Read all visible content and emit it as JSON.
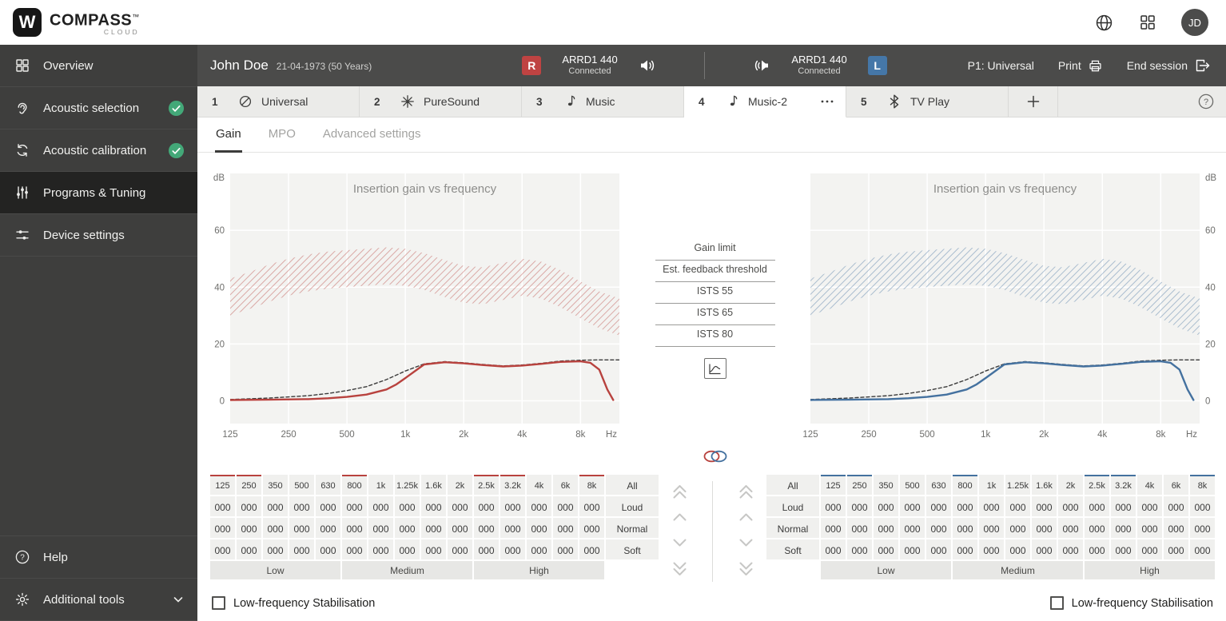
{
  "top_bar": {
    "logo_mark": "W",
    "logo_text": "COMPASS",
    "logo_tm": "™",
    "logo_sub": "CLOUD",
    "avatar_initials": "JD"
  },
  "sidebar": {
    "items": [
      {
        "label": "Overview",
        "icon": "overview-grid-icon",
        "active": false,
        "checked": false
      },
      {
        "label": "Acoustic selection",
        "icon": "ear-icon",
        "active": false,
        "checked": true
      },
      {
        "label": "Acoustic calibration",
        "icon": "calibration-icon",
        "active": false,
        "checked": true
      },
      {
        "label": "Programs & Tuning",
        "icon": "tuning-sliders-icon",
        "active": true,
        "checked": false
      },
      {
        "label": "Device settings",
        "icon": "device-settings-icon",
        "active": false,
        "checked": false
      }
    ],
    "bottom_items": [
      {
        "label": "Help",
        "icon": "help-icon",
        "chevron": false
      },
      {
        "label": "Additional tools",
        "icon": "additional-tools-icon",
        "chevron": true
      }
    ]
  },
  "patient_header": {
    "name": "John Doe",
    "dob": "21-04-1973 (50 Years)",
    "right_ear": {
      "badge": "R",
      "device": "ARRD1 440",
      "status": "Connected"
    },
    "left_ear": {
      "badge": "L",
      "device": "ARRD1 440",
      "status": "Connected"
    },
    "program_indicator": "P1: Universal",
    "print_label": "Print",
    "end_session_label": "End session"
  },
  "program_tabs": {
    "tabs": [
      {
        "number": "1",
        "label": "Universal",
        "icon": "universal-icon",
        "active": false,
        "menu": false
      },
      {
        "number": "2",
        "label": "PureSound",
        "icon": "puresound-icon",
        "active": false,
        "menu": false
      },
      {
        "number": "3",
        "label": "Music",
        "icon": "music-note-icon",
        "active": false,
        "menu": false
      },
      {
        "number": "4",
        "label": "Music-2",
        "icon": "music-note-icon",
        "active": true,
        "menu": true
      },
      {
        "number": "5",
        "label": "TV Play",
        "icon": "bluetooth-icon",
        "active": false,
        "menu": false
      }
    ]
  },
  "sub_tabs": {
    "items": [
      "Gain",
      "MPO",
      "Advanced settings"
    ],
    "active_index": 0
  },
  "middle_panel": {
    "buttons": [
      "Gain limit",
      "Est. feedback threshold",
      "ISTS 55",
      "ISTS 65",
      "ISTS 80"
    ]
  },
  "gain_table": {
    "frequencies": [
      "125",
      "250",
      "350",
      "500",
      "630",
      "800",
      "1k",
      "1.25k",
      "1.6k",
      "2k",
      "2.5k",
      "3.2k",
      "4k",
      "6k",
      "8k"
    ],
    "all_label": "All",
    "row_labels": [
      "Loud",
      "Normal",
      "Soft"
    ],
    "cell_value": "000",
    "bands": [
      "Low",
      "Medium",
      "High"
    ],
    "accent_columns": [
      0,
      1,
      5,
      10,
      11,
      14
    ]
  },
  "footer": {
    "stabilisation_label": "Low-frequency Stabilisation"
  },
  "colors": {
    "red": "#b8423e",
    "blue": "#44719f",
    "green": "#43a878"
  },
  "chart_data": {
    "type": "line",
    "title": "Insertion gain vs frequency",
    "xlabel": "Hz",
    "ylabel": "dB",
    "x_scale": "log",
    "xlim": [
      125,
      12700
    ],
    "ylim": [
      -8,
      80
    ],
    "y_ticks": [
      0,
      20,
      40,
      60
    ],
    "x_ticks": [
      {
        "v": 125,
        "label": "125"
      },
      {
        "v": 250,
        "label": "250"
      },
      {
        "v": 500,
        "label": "500"
      },
      {
        "v": 1000,
        "label": "1k"
      },
      {
        "v": 2000,
        "label": "2k"
      },
      {
        "v": 4000,
        "label": "4k"
      },
      {
        "v": 8000,
        "label": "8k"
      }
    ],
    "panels": [
      {
        "ear": "right",
        "label_side": "left",
        "accent": "#b8423e"
      },
      {
        "ear": "left",
        "label_side": "right",
        "accent": "#44719f"
      }
    ],
    "band": {
      "name": "gain-limit-region",
      "x": [
        125,
        160,
        200,
        250,
        315,
        400,
        500,
        630,
        800,
        1000,
        1250,
        1600,
        2000,
        2500,
        3200,
        4000,
        5000,
        6300,
        8000,
        10000,
        12700
      ],
      "upper": [
        43,
        45.5,
        48,
        50,
        51.5,
        52.5,
        53,
        53.5,
        54,
        53.5,
        52,
        49.5,
        47.5,
        47,
        48.5,
        50,
        49,
        46,
        42,
        38.5,
        36
      ],
      "lower": [
        30,
        32.5,
        35,
        37,
        38.5,
        39.5,
        40,
        40.5,
        41,
        40.5,
        39,
        36.5,
        34.5,
        34,
        35.5,
        37,
        36,
        33,
        29,
        25.5,
        23
      ]
    },
    "series": [
      {
        "name": "target-gain",
        "style": "dashed",
        "color": "#3a3a3a",
        "x": [
          125,
          200,
          315,
          400,
          500,
          630,
          800,
          1000,
          1250,
          1600,
          2000,
          2500,
          3200,
          4000,
          5000,
          6300,
          8000,
          10000,
          12700
        ],
        "y": [
          0.5,
          1,
          1.8,
          2.6,
          3.6,
          5,
          7.5,
          10.5,
          13,
          13.8,
          13.4,
          12.8,
          12.3,
          12.6,
          13.2,
          14,
          14.3,
          14.4,
          14.4
        ]
      },
      {
        "name": "insertion-gain",
        "style": "solid",
        "color": "accent",
        "x": [
          125,
          200,
          315,
          400,
          500,
          630,
          800,
          900,
          1000,
          1150,
          1250,
          1600,
          2000,
          2500,
          3200,
          4000,
          5000,
          6300,
          8000,
          9000,
          10000,
          11000,
          11800
        ],
        "y": [
          0.3,
          0.4,
          0.6,
          0.9,
          1.4,
          2.2,
          4,
          5.8,
          8,
          11,
          12.8,
          13.6,
          13.2,
          12.6,
          12.1,
          12.4,
          13,
          13.7,
          13.9,
          13.4,
          11,
          4,
          0.3
        ]
      }
    ]
  }
}
